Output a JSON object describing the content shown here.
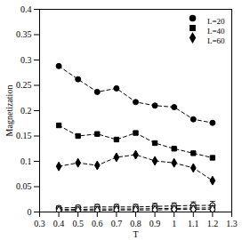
{
  "chart_data": {
    "type": "line",
    "x_label": "T",
    "y_label": "Magnetization",
    "x": [
      0.4,
      0.5,
      0.6,
      0.7,
      0.8,
      0.9,
      1,
      1.1,
      1.2
    ],
    "xlim": [
      0.3,
      1.3
    ],
    "xticks": [
      0.3,
      0.4,
      0.5,
      0.6,
      0.7,
      0.8,
      0.9,
      1,
      1.1,
      1.2,
      1.3
    ],
    "ylim": [
      0,
      0.4
    ],
    "yticks": [
      0,
      0.05,
      0.1,
      0.15,
      0.2,
      0.25,
      0.3,
      0.35,
      0.4
    ],
    "grid": false,
    "legend": "top-right",
    "series": [
      {
        "name": "L=20",
        "color": "#000000",
        "marker": "circle",
        "line_style": "dashed",
        "values": [
          0.288,
          0.262,
          0.237,
          0.244,
          0.217,
          0.21,
          0.207,
          0.183,
          0.176
        ]
      },
      {
        "name": "L=40",
        "color": "#000000",
        "marker": "square",
        "line_style": "dashed",
        "values": [
          0.171,
          0.15,
          0.154,
          0.143,
          0.156,
          0.136,
          0.125,
          0.116,
          0.107
        ]
      },
      {
        "name": "L=60",
        "color": "#000000",
        "marker": "diamond",
        "line_style": "dashed",
        "values": [
          0.09,
          0.097,
          0.092,
          0.108,
          0.113,
          0.101,
          0.097,
          0.087,
          0.062
        ]
      },
      {
        "color": "#000000",
        "marker": "open circle",
        "line_style": "dashed",
        "values": [
          0.008,
          0.009,
          0.01,
          0.01,
          0.01,
          0.011,
          0.012,
          0.013,
          0.013
        ],
        "errors": [
          0.004,
          0.004,
          0.005,
          0.005,
          0.005,
          0.006,
          0.006,
          0.007,
          0.008
        ]
      },
      {
        "color": "#000000",
        "marker": "open square",
        "line_style": "dashed",
        "values": [
          0.005,
          0.005,
          0.006,
          0.006,
          0.006,
          0.007,
          0.007,
          0.008,
          0.008
        ],
        "errors": [
          0.003,
          0.003,
          0.003,
          0.003,
          0.003,
          0.004,
          0.004,
          0.004,
          0.004
        ]
      },
      {
        "color": "#000000",
        "marker": "open diamond",
        "line_style": "dashed",
        "values": [
          0.003,
          0.003,
          0.003,
          0.004,
          0.004,
          0.004,
          0.005,
          0.005,
          0.005
        ],
        "errors": [
          0.002,
          0.002,
          0.002,
          0.002,
          0.002,
          0.002,
          0.003,
          0.003,
          0.003
        ]
      }
    ]
  }
}
